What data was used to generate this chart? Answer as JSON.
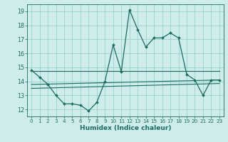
{
  "xlabel": "Humidex (Indice chaleur)",
  "bg_color": "#ceecea",
  "grid_color": "#8ecbc5",
  "line_color": "#1a6b60",
  "xlim": [
    -0.5,
    23.5
  ],
  "ylim": [
    11.5,
    19.5
  ],
  "xticks": [
    0,
    1,
    2,
    3,
    4,
    5,
    6,
    7,
    8,
    9,
    10,
    11,
    12,
    13,
    14,
    15,
    16,
    17,
    18,
    19,
    20,
    21,
    22,
    23
  ],
  "yticks": [
    12,
    13,
    14,
    15,
    16,
    17,
    18,
    19
  ],
  "main_line": [
    14.8,
    14.3,
    13.8,
    13.0,
    12.4,
    12.4,
    12.3,
    11.9,
    12.5,
    14.0,
    16.6,
    14.7,
    19.1,
    17.7,
    16.45,
    17.1,
    17.1,
    17.45,
    17.1,
    14.5,
    14.1,
    13.0,
    14.1,
    14.1
  ],
  "upper_line_x": [
    0,
    1,
    2,
    23
  ],
  "upper_line_y": [
    14.75,
    14.3,
    13.9,
    14.75
  ],
  "mid_line_x": [
    0,
    23
  ],
  "mid_line_y": [
    13.85,
    13.85
  ],
  "lower_line_x": [
    0,
    23
  ],
  "lower_line_y": [
    13.55,
    14.05
  ]
}
